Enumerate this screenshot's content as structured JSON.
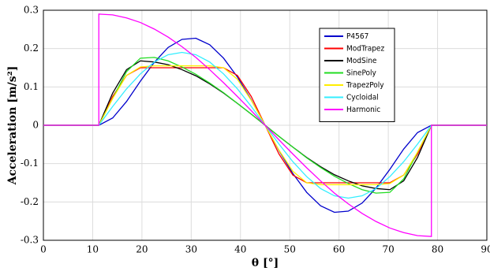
{
  "chart_data": {
    "type": "line",
    "xlabel": "θ [°]",
    "ylabel": "Acceleration [m/s²]",
    "x": [
      0,
      11.25,
      11.25,
      14.0625,
      16.875,
      19.6875,
      22.5,
      25.3125,
      28.125,
      30.9375,
      33.75,
      36.5625,
      39.375,
      42.1875,
      45,
      47.8125,
      50.625,
      53.4375,
      56.25,
      59.0625,
      61.875,
      64.6875,
      67.5,
      70.3125,
      73.125,
      75.9375,
      78.75,
      78.75,
      90
    ],
    "series": [
      {
        "name": "P4567",
        "color": "#0000cc",
        "values": [
          0,
          0,
          0,
          0.019,
          0.062,
          0.115,
          0.164,
          0.203,
          0.224,
          0.227,
          0.21,
          0.175,
          0.126,
          0.066,
          0,
          -0.066,
          -0.126,
          -0.175,
          -0.21,
          -0.227,
          -0.224,
          -0.203,
          -0.164,
          -0.115,
          -0.062,
          -0.019,
          0,
          0,
          0
        ]
      },
      {
        "name": "ModTrapez",
        "color": "#ff0000",
        "values": [
          0,
          0,
          0,
          0.075,
          0.13,
          0.15,
          0.15,
          0.15,
          0.15,
          0.15,
          0.15,
          0.15,
          0.13,
          0.075,
          0,
          -0.075,
          -0.13,
          -0.15,
          -0.15,
          -0.15,
          -0.15,
          -0.15,
          -0.15,
          -0.15,
          -0.13,
          -0.075,
          0,
          0,
          0
        ]
      },
      {
        "name": "ModSine",
        "color": "#000000",
        "values": [
          0,
          0,
          0,
          0.084,
          0.145,
          0.168,
          0.165,
          0.158,
          0.145,
          0.129,
          0.108,
          0.084,
          0.057,
          0.029,
          0,
          -0.029,
          -0.057,
          -0.084,
          -0.108,
          -0.129,
          -0.145,
          -0.158,
          -0.165,
          -0.168,
          -0.145,
          -0.084,
          0,
          0,
          0
        ]
      },
      {
        "name": "SinePoly",
        "color": "#22dd22",
        "values": [
          0,
          0,
          0,
          0.07,
          0.14,
          0.175,
          0.177,
          0.168,
          0.152,
          0.133,
          0.11,
          0.085,
          0.057,
          0.029,
          0,
          -0.029,
          -0.057,
          -0.085,
          -0.11,
          -0.133,
          -0.152,
          -0.168,
          -0.177,
          -0.175,
          -0.14,
          -0.07,
          0,
          0,
          0
        ]
      },
      {
        "name": "TrapezPoly",
        "color": "#ffee00",
        "values": [
          0,
          0,
          0,
          0.07,
          0.13,
          0.152,
          0.155,
          0.155,
          0.155,
          0.155,
          0.155,
          0.15,
          0.12,
          0.065,
          0,
          -0.065,
          -0.12,
          -0.15,
          -0.155,
          -0.155,
          -0.155,
          -0.155,
          -0.155,
          -0.152,
          -0.13,
          -0.07,
          0,
          0,
          0
        ]
      },
      {
        "name": "Cycloidal",
        "color": "#33eeff",
        "values": [
          0,
          0,
          0,
          0.049,
          0.095,
          0.134,
          0.165,
          0.184,
          0.19,
          0.184,
          0.165,
          0.134,
          0.095,
          0.049,
          0,
          -0.049,
          -0.095,
          -0.134,
          -0.165,
          -0.184,
          -0.19,
          -0.184,
          -0.165,
          -0.134,
          -0.095,
          -0.049,
          0,
          0,
          0
        ]
      },
      {
        "name": "Harmonic",
        "color": "#ff00ff",
        "values": [
          0,
          0,
          0.29,
          0.288,
          0.28,
          0.268,
          0.251,
          0.23,
          0.205,
          0.177,
          0.145,
          0.111,
          0.075,
          0.038,
          0,
          -0.038,
          -0.075,
          -0.111,
          -0.145,
          -0.177,
          -0.205,
          -0.23,
          -0.251,
          -0.268,
          -0.28,
          -0.288,
          -0.29,
          0,
          0
        ]
      }
    ],
    "xlim": [
      0,
      90
    ],
    "xticks": [
      0,
      10,
      20,
      30,
      40,
      50,
      60,
      70,
      80,
      90
    ],
    "ylim": [
      -0.3,
      0.3
    ],
    "yticks": [
      -0.3,
      -0.2,
      -0.1,
      0,
      0.1,
      0.2,
      0.3
    ],
    "grid": true,
    "legend": "upper right"
  }
}
